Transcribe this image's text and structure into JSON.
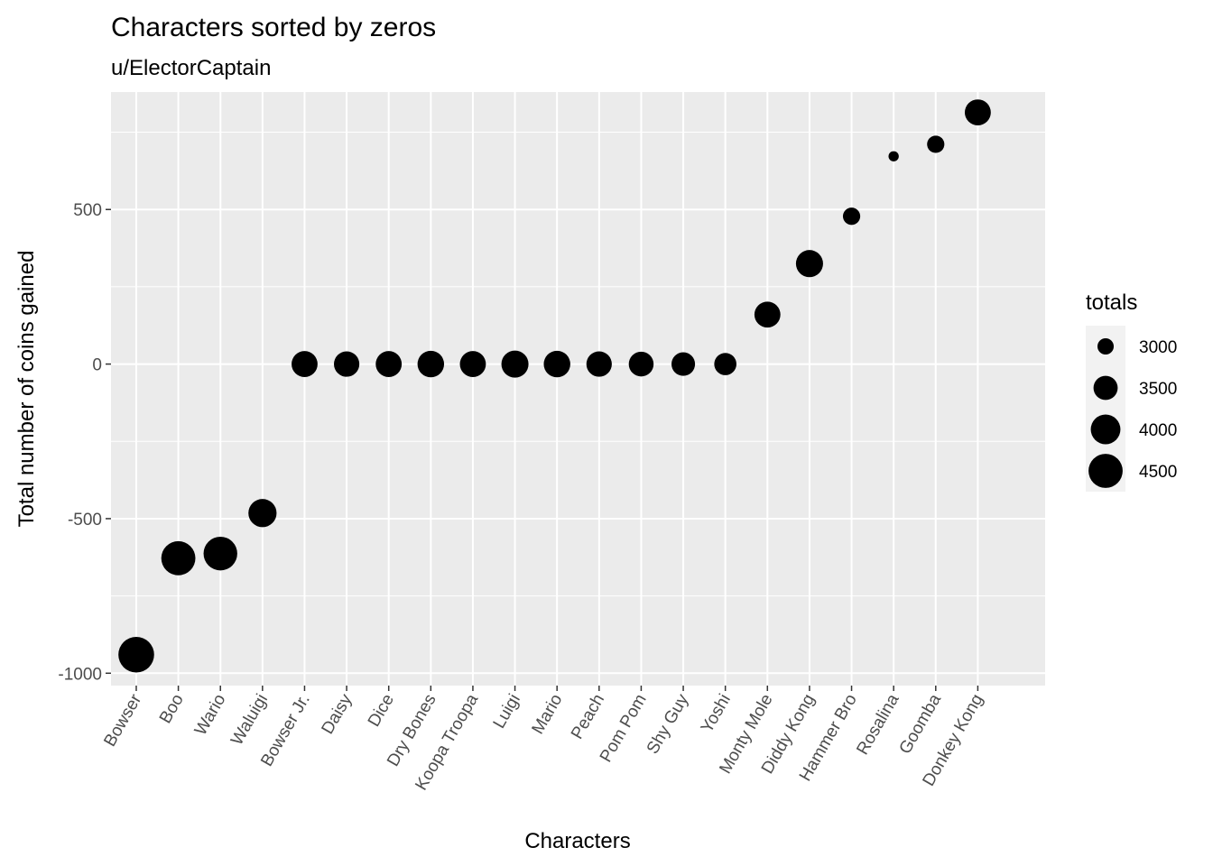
{
  "chart_data": {
    "type": "scatter",
    "title": "Characters sorted by zeros",
    "subtitle": "u/ElectorCaptain",
    "xlabel": "Characters",
    "ylabel": "Total number of coins gained",
    "ylim": [
      -1040,
      880
    ],
    "yticks": [
      -1000,
      -500,
      0,
      500
    ],
    "ytick_labels": [
      "-1000",
      "-500",
      "0",
      "500"
    ],
    "grid": true,
    "legend_position": "right",
    "size_legend": {
      "title": "totals",
      "values": [
        3000,
        3500,
        4000,
        4500
      ],
      "labels": [
        "3000",
        "3500",
        "4000",
        "4500"
      ]
    },
    "colors": {
      "panel_background": "#ebebeb",
      "grid": "#ffffff",
      "point": "#000000",
      "tick_label": "#4d4d4d"
    },
    "points": [
      {
        "x": "Bowser",
        "y": -940,
        "size": 4700
      },
      {
        "x": "Boo",
        "y": -628,
        "size": 4500
      },
      {
        "x": "Wario",
        "y": -613,
        "size": 4450
      },
      {
        "x": "Waluigi",
        "y": -482,
        "size": 3850
      },
      {
        "x": "Bowser Jr.",
        "y": 0,
        "size": 3650
      },
      {
        "x": "Daisy",
        "y": 0,
        "size": 3600
      },
      {
        "x": "Dice",
        "y": 0,
        "size": 3650
      },
      {
        "x": "Dry Bones",
        "y": 0,
        "size": 3700
      },
      {
        "x": "Koopa Troopa",
        "y": 0,
        "size": 3650
      },
      {
        "x": "Luigi",
        "y": 0,
        "size": 3750
      },
      {
        "x": "Mario",
        "y": 0,
        "size": 3700
      },
      {
        "x": "Peach",
        "y": 0,
        "size": 3600
      },
      {
        "x": "Pom Pom",
        "y": 0,
        "size": 3550
      },
      {
        "x": "Shy Guy",
        "y": 0,
        "size": 3450
      },
      {
        "x": "Yoshi",
        "y": 0,
        "size": 3350
      },
      {
        "x": "Monty Mole",
        "y": 160,
        "size": 3650
      },
      {
        "x": "Diddy Kong",
        "y": 325,
        "size": 3750
      },
      {
        "x": "Hammer Bro",
        "y": 478,
        "size": 3050
      },
      {
        "x": "Rosalina",
        "y": 672,
        "size": 2800
      },
      {
        "x": "Goomba",
        "y": 711,
        "size": 3050
      },
      {
        "x": "Donkey Kong",
        "y": 814,
        "size": 3650
      }
    ]
  }
}
